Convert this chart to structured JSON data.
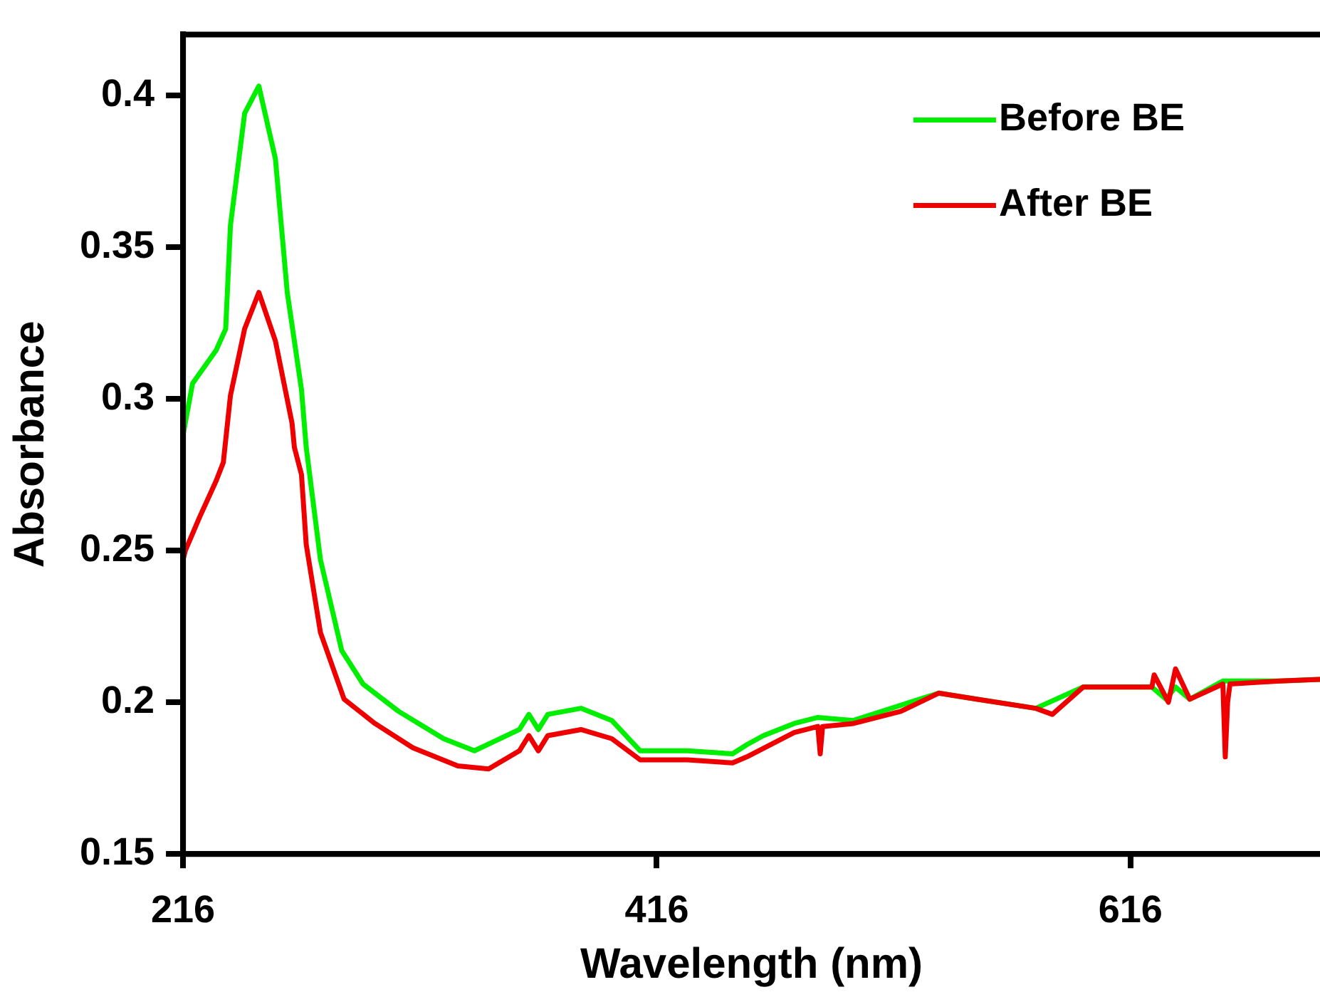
{
  "chart_data": {
    "type": "line",
    "xlabel": "Wavelength (nm)",
    "ylabel": "Absorbance",
    "xlim": [
      216,
      696
    ],
    "ylim": [
      0.15,
      0.42
    ],
    "xticks": [
      216,
      416,
      616
    ],
    "yticks": [
      0.15,
      0.2,
      0.25,
      0.3,
      0.35,
      0.4
    ],
    "grid": false,
    "legend": "top right",
    "marker": "none",
    "line_style": "solid",
    "series": [
      {
        "name": "Before BE",
        "color": "#00ee00",
        "x": [
          216,
          220,
          230,
          234,
          236,
          242,
          248,
          255,
          260,
          266,
          268,
          274,
          283,
          292,
          307,
          326,
          339,
          358,
          362,
          366,
          370,
          384,
          397,
          409,
          429,
          448,
          454,
          461,
          474,
          484,
          499,
          519,
          535,
          551,
          576,
          596,
          625,
          631,
          635,
          641,
          655,
          679,
          696
        ],
        "values": [
          0.288,
          0.305,
          0.316,
          0.323,
          0.357,
          0.394,
          0.403,
          0.379,
          0.335,
          0.303,
          0.284,
          0.247,
          0.217,
          0.206,
          0.197,
          0.188,
          0.184,
          0.191,
          0.196,
          0.191,
          0.196,
          0.198,
          0.194,
          0.184,
          0.184,
          0.183,
          0.186,
          0.189,
          0.193,
          0.195,
          0.194,
          0.199,
          0.203,
          0.201,
          0.198,
          0.205,
          0.205,
          0.201,
          0.205,
          0.201,
          0.207,
          0.207,
          0.2075
        ]
      },
      {
        "name": "After BE",
        "color": "#ee0000",
        "x": [
          216,
          217,
          223,
          230,
          233,
          236,
          242,
          248,
          255,
          262,
          263,
          266,
          268,
          274,
          284,
          297,
          313,
          332,
          345,
          358,
          362,
          366,
          370,
          384,
          397,
          409,
          429,
          448,
          454,
          474,
          484,
          485,
          486,
          499,
          519,
          535,
          551,
          576,
          583,
          596,
          625,
          626,
          632,
          635,
          641,
          655,
          656,
          657,
          658,
          679,
          696
        ],
        "values": [
          0.247,
          0.25,
          0.261,
          0.273,
          0.279,
          0.301,
          0.323,
          0.335,
          0.319,
          0.292,
          0.284,
          0.275,
          0.252,
          0.223,
          0.201,
          0.193,
          0.185,
          0.179,
          0.178,
          0.184,
          0.189,
          0.184,
          0.189,
          0.191,
          0.188,
          0.181,
          0.181,
          0.18,
          0.182,
          0.19,
          0.192,
          0.183,
          0.192,
          0.193,
          0.197,
          0.203,
          0.201,
          0.198,
          0.196,
          0.205,
          0.205,
          0.209,
          0.2,
          0.211,
          0.201,
          0.206,
          0.182,
          0.2,
          0.206,
          0.207,
          0.2075
        ]
      }
    ]
  }
}
